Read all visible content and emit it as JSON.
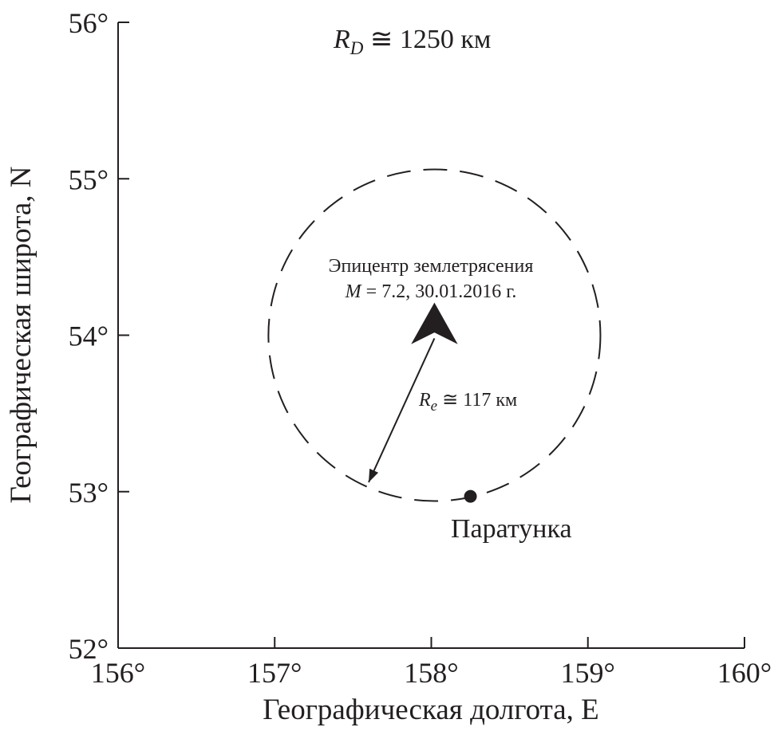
{
  "chart_data": {
    "type": "scatter",
    "title": "",
    "xlabel": "Географическая долгота, E",
    "ylabel": "Географическая широта, N",
    "xlim": [
      156,
      160
    ],
    "ylim": [
      52,
      56
    ],
    "x_ticks": [
      156,
      157,
      158,
      159,
      160
    ],
    "y_ticks": [
      52,
      53,
      54,
      55,
      56
    ],
    "x_tick_labels": [
      "156°",
      "157°",
      "158°",
      "159°",
      "160°"
    ],
    "y_tick_labels": [
      "52°",
      "53°",
      "54°",
      "55°",
      "56°"
    ],
    "grid": false,
    "points": [
      {
        "name": "epicenter",
        "x": 158.02,
        "y": 54.03,
        "marker": "arrowhead"
      },
      {
        "name": "Паратунка",
        "x": 158.25,
        "y": 52.97,
        "marker": "dot"
      }
    ],
    "circle": {
      "center_x": 158.02,
      "center_y": 54.0,
      "radius_deg": 1.06,
      "style": "dashed"
    },
    "radius_arrow": {
      "from_x": 158.02,
      "from_y": 53.98,
      "to_x": 157.6,
      "to_y": 53.06
    },
    "annotations": {
      "rd": {
        "symbol": "R",
        "subscript": "D",
        "text": " ≅ 1250 км"
      },
      "epicenter_line1": "Эпицентр землетрясения",
      "epicenter_line2_symbol": "M",
      "epicenter_line2_text": " = 7.2, 30.01.2016 г.",
      "re": {
        "symbol": "R",
        "subscript": "e",
        "text": " ≅ 117 км"
      },
      "station": "Паратунка"
    }
  }
}
